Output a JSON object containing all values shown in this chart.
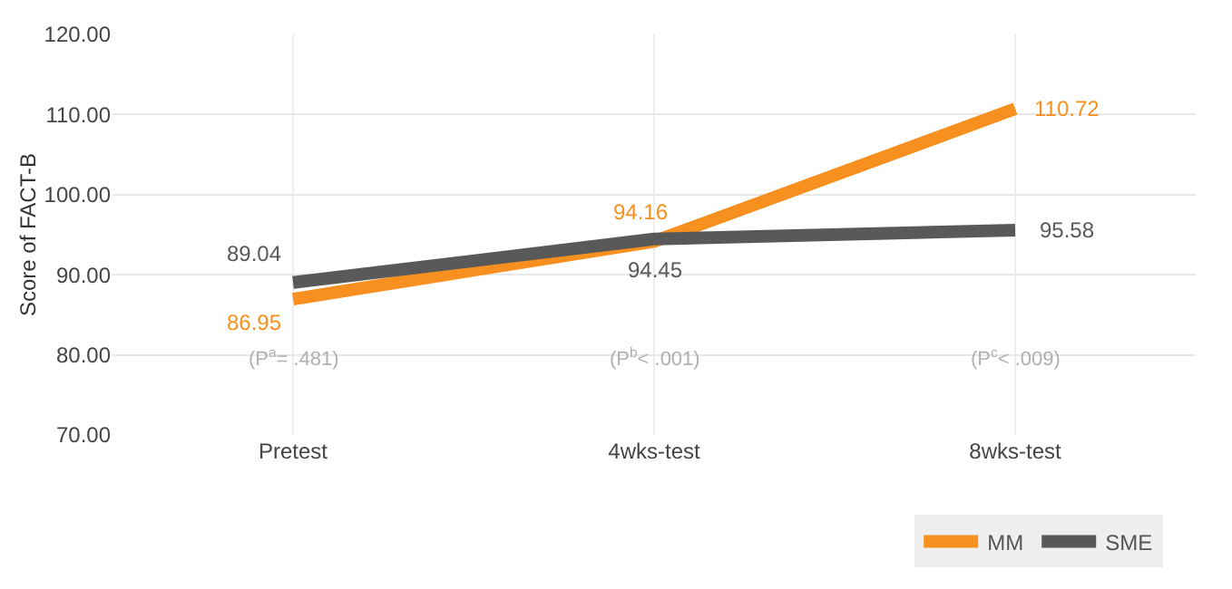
{
  "chart_data": {
    "type": "line",
    "ylabel": "Score of FACT-B",
    "categories": [
      "Pretest",
      "4wks-test",
      "8wks-test"
    ],
    "series": [
      {
        "name": "MM",
        "color": "#f7901e",
        "values": [
          86.95,
          94.16,
          110.72
        ]
      },
      {
        "name": "SME",
        "color": "#595959",
        "values": [
          89.04,
          94.45,
          95.58
        ]
      }
    ],
    "ylim": [
      70,
      120
    ],
    "yticks": [
      {
        "value": 70,
        "label": "70.00"
      },
      {
        "value": 80,
        "label": "80.00"
      },
      {
        "value": 90,
        "label": "90.00"
      },
      {
        "value": 100,
        "label": "100.00"
      },
      {
        "value": 110,
        "label": "110.00"
      },
      {
        "value": 120,
        "label": "120.00"
      }
    ],
    "grid": true,
    "legend": "bottom right",
    "data_labels": true,
    "marker": "none",
    "line_style": "solid",
    "annotations": [
      "(P$^{a}$= .481)",
      "(P$^{b}$< .001)",
      "(P$^{c}$< .009)"
    ]
  }
}
